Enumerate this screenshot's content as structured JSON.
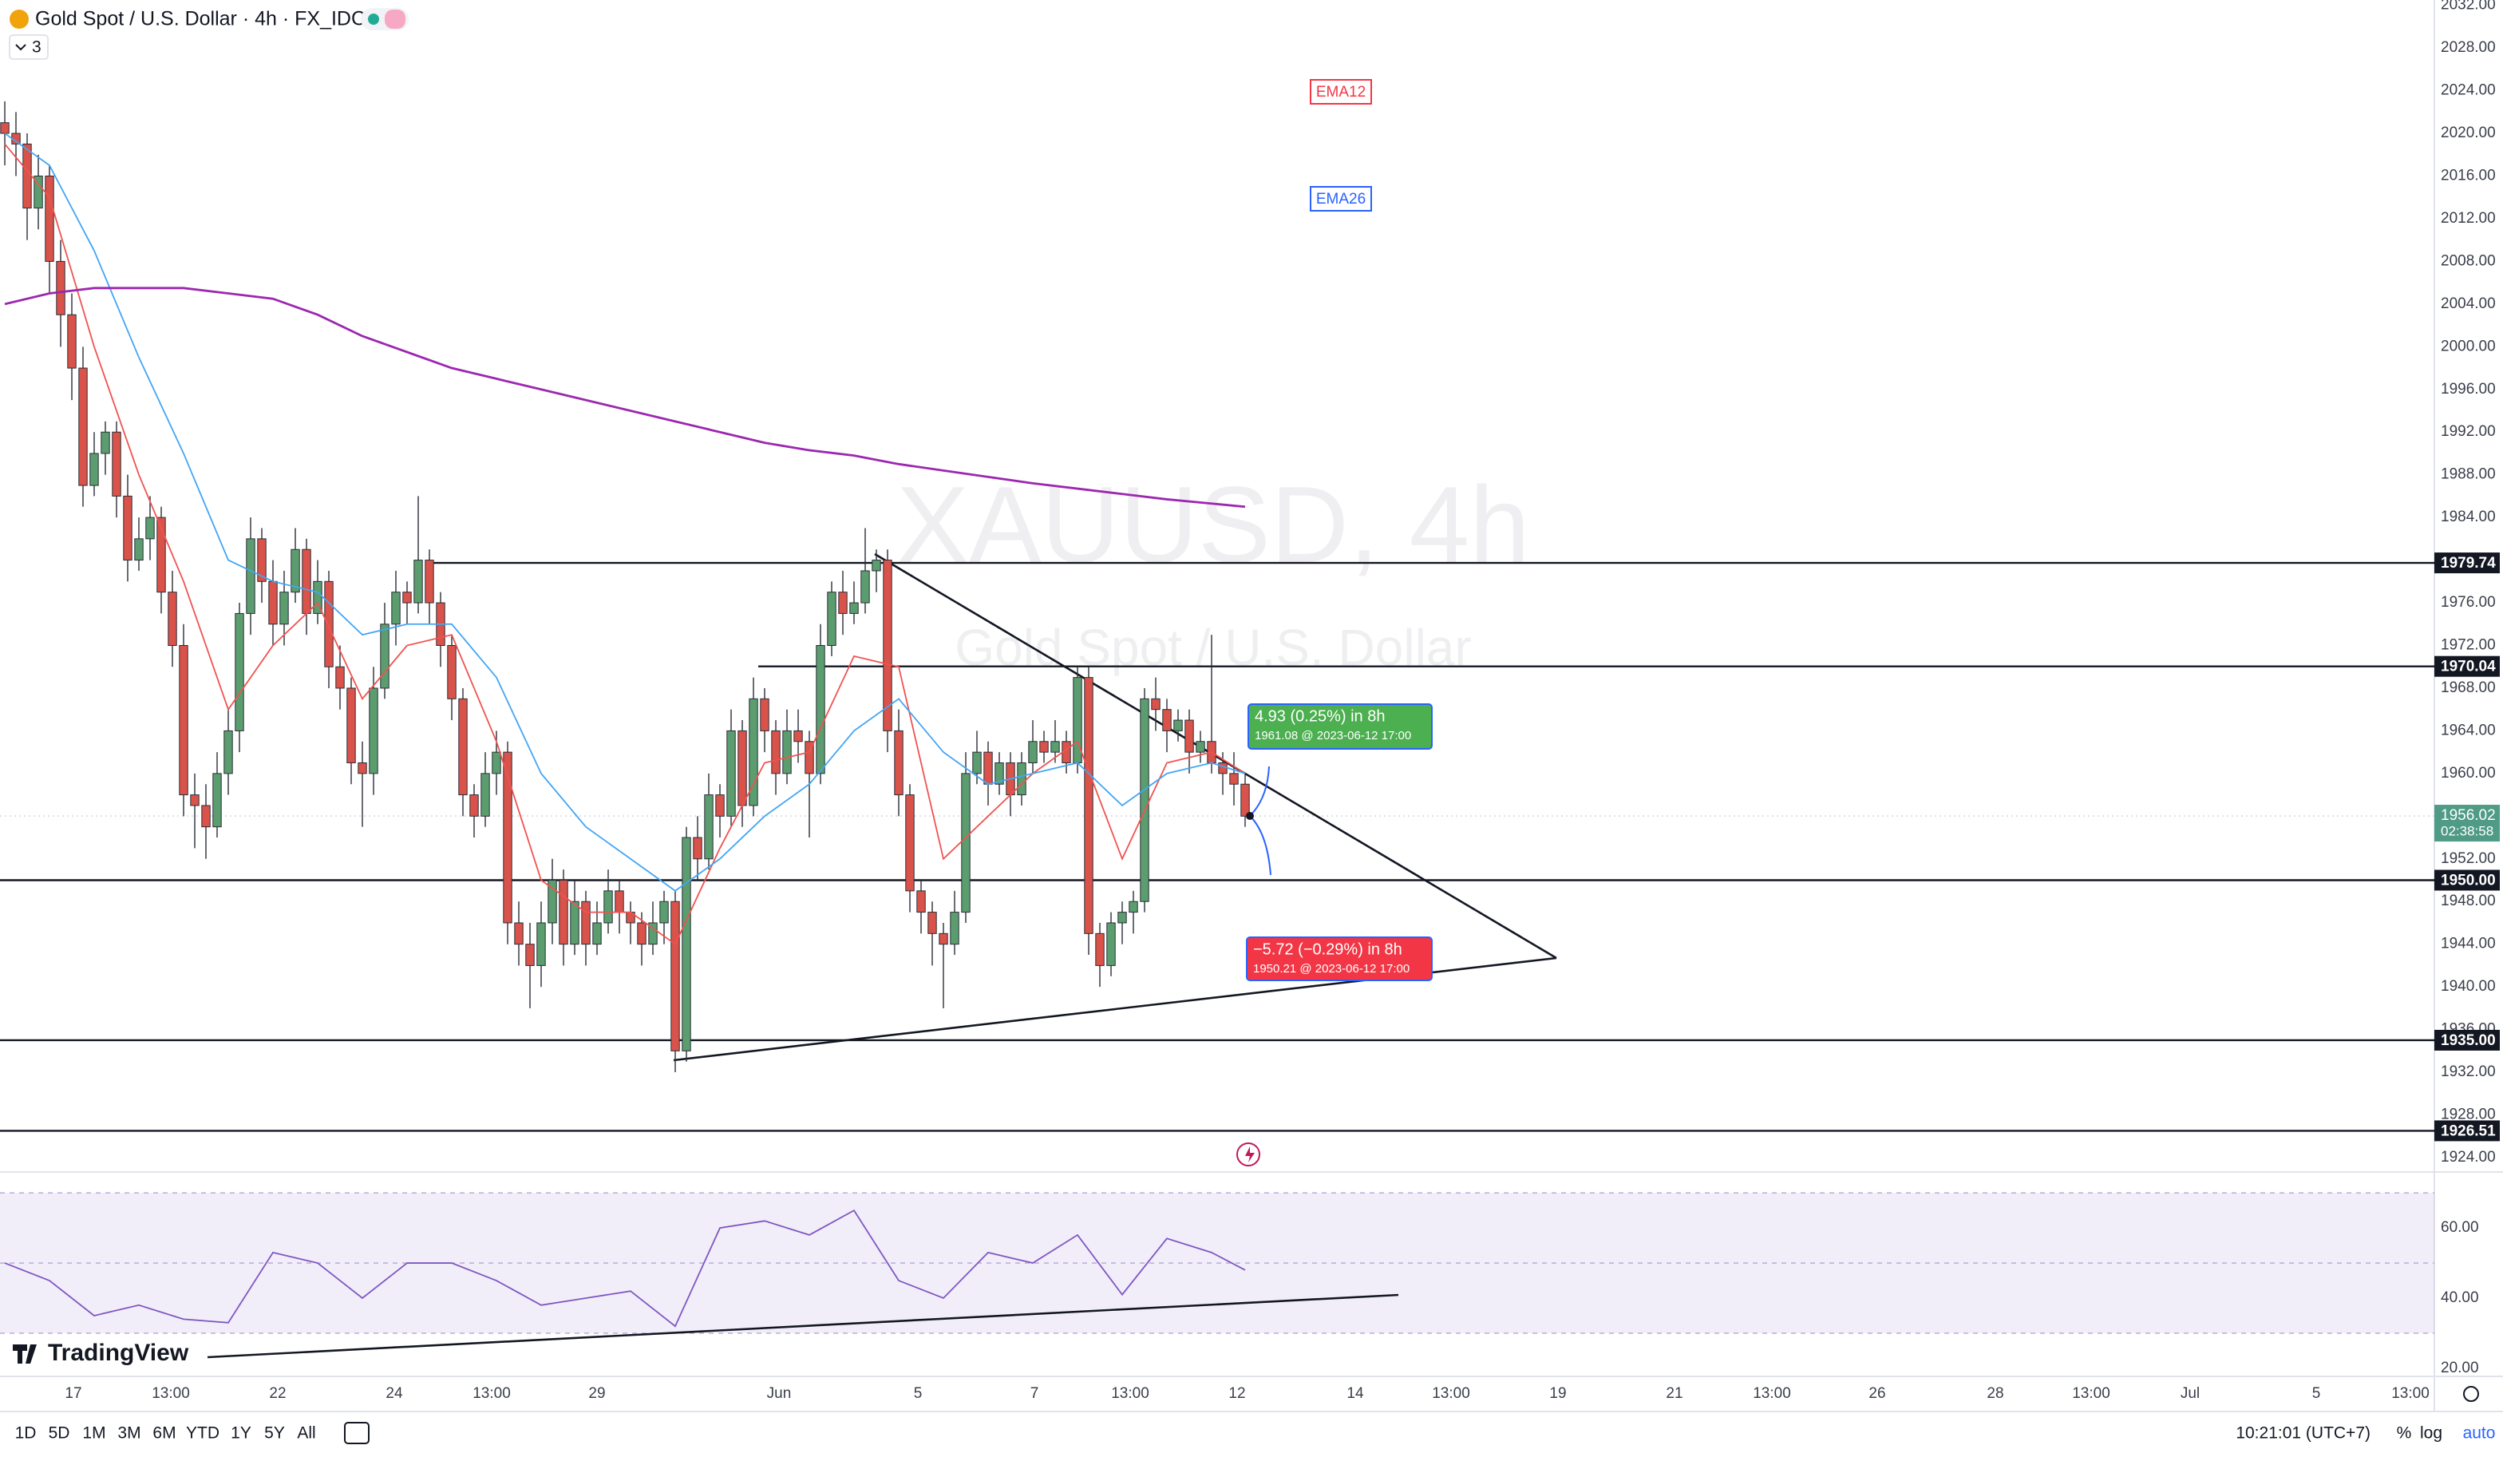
{
  "header": {
    "symbol_title": "Gold Spot / U.S. Dollar · 4h · FX_IDC",
    "indicator_count": "3"
  },
  "watermark": {
    "symbol": "XAUUSD, 4h",
    "description": "Gold Spot / U.S. Dollar"
  },
  "chart": {
    "type": "candlestick",
    "up_color": "#5b9d6e",
    "down_color": "#d9534a",
    "candles": [
      [
        2021,
        2023,
        2017,
        2020
      ],
      [
        2020,
        2022,
        2016,
        2019
      ],
      [
        2019,
        2020,
        2010,
        2013
      ],
      [
        2013,
        2018,
        2011,
        2016
      ],
      [
        2016,
        2017,
        2005,
        2008
      ],
      [
        2008,
        2010,
        2000,
        2003
      ],
      [
        2003,
        2005,
        1995,
        1998
      ],
      [
        1998,
        2000,
        1985,
        1987
      ],
      [
        1987,
        1992,
        1986,
        1990
      ],
      [
        1990,
        1993,
        1988,
        1992
      ],
      [
        1992,
        1993,
        1984,
        1986
      ],
      [
        1986,
        1988,
        1978,
        1980
      ],
      [
        1980,
        1984,
        1979,
        1982
      ],
      [
        1982,
        1986,
        1980,
        1984
      ],
      [
        1984,
        1985,
        1975,
        1977
      ],
      [
        1977,
        1979,
        1970,
        1972
      ],
      [
        1972,
        1974,
        1956,
        1958
      ],
      [
        1958,
        1960,
        1953,
        1957
      ],
      [
        1957,
        1959,
        1952,
        1955
      ],
      [
        1955,
        1962,
        1954,
        1960
      ],
      [
        1960,
        1966,
        1958,
        1964
      ],
      [
        1964,
        1976,
        1962,
        1975
      ],
      [
        1975,
        1984,
        1973,
        1982
      ],
      [
        1982,
        1983,
        1976,
        1978
      ],
      [
        1978,
        1980,
        1972,
        1974
      ],
      [
        1974,
        1979,
        1972,
        1977
      ],
      [
        1977,
        1983,
        1976,
        1981
      ],
      [
        1981,
        1982,
        1973,
        1975
      ],
      [
        1975,
        1980,
        1974,
        1978
      ],
      [
        1978,
        1979,
        1968,
        1970
      ],
      [
        1970,
        1972,
        1966,
        1968
      ],
      [
        1968,
        1969,
        1959,
        1961
      ],
      [
        1961,
        1963,
        1955,
        1960
      ],
      [
        1960,
        1970,
        1958,
        1968
      ],
      [
        1968,
        1976,
        1967,
        1974
      ],
      [
        1974,
        1979,
        1972,
        1977
      ],
      [
        1977,
        1978,
        1974,
        1976
      ],
      [
        1976,
        1986,
        1975,
        1980
      ],
      [
        1980,
        1981,
        1974,
        1976
      ],
      [
        1976,
        1977,
        1970,
        1972
      ],
      [
        1972,
        1973,
        1965,
        1967
      ],
      [
        1967,
        1968,
        1956,
        1958
      ],
      [
        1958,
        1959,
        1954,
        1956
      ],
      [
        1956,
        1962,
        1955,
        1960
      ],
      [
        1960,
        1964,
        1958,
        1962
      ],
      [
        1962,
        1963,
        1944,
        1946
      ],
      [
        1946,
        1948,
        1942,
        1944
      ],
      [
        1944,
        1946,
        1938,
        1942
      ],
      [
        1942,
        1948,
        1940,
        1946
      ],
      [
        1946,
        1952,
        1944,
        1950
      ],
      [
        1950,
        1951,
        1942,
        1944
      ],
      [
        1944,
        1950,
        1943,
        1948
      ],
      [
        1948,
        1949,
        1942,
        1944
      ],
      [
        1944,
        1948,
        1943,
        1946
      ],
      [
        1946,
        1951,
        1945,
        1949
      ],
      [
        1949,
        1950,
        1945,
        1947
      ],
      [
        1947,
        1948,
        1944,
        1946
      ],
      [
        1946,
        1947,
        1942,
        1944
      ],
      [
        1944,
        1948,
        1943,
        1946
      ],
      [
        1946,
        1949,
        1944,
        1948
      ],
      [
        1948,
        1949,
        1932,
        1934
      ],
      [
        1934,
        1955,
        1933,
        1954
      ],
      [
        1954,
        1956,
        1950,
        1952
      ],
      [
        1952,
        1960,
        1951,
        1958
      ],
      [
        1958,
        1959,
        1954,
        1956
      ],
      [
        1956,
        1966,
        1955,
        1964
      ],
      [
        1964,
        1965,
        1955,
        1957
      ],
      [
        1957,
        1969,
        1956,
        1967
      ],
      [
        1967,
        1968,
        1962,
        1964
      ],
      [
        1964,
        1965,
        1958,
        1960
      ],
      [
        1960,
        1966,
        1959,
        1964
      ],
      [
        1964,
        1966,
        1961,
        1963
      ],
      [
        1963,
        1964,
        1954,
        1960
      ],
      [
        1960,
        1974,
        1959,
        1972
      ],
      [
        1972,
        1978,
        1971,
        1977
      ],
      [
        1977,
        1979,
        1973,
        1975
      ],
      [
        1975,
        1978,
        1974,
        1976
      ],
      [
        1976,
        1983,
        1975,
        1979
      ],
      [
        1979,
        1981,
        1977,
        1980
      ],
      [
        1980,
        1981,
        1962,
        1964
      ],
      [
        1964,
        1966,
        1956,
        1958
      ],
      [
        1958,
        1959,
        1947,
        1949
      ],
      [
        1949,
        1950,
        1945,
        1947
      ],
      [
        1947,
        1948,
        1942,
        1945
      ],
      [
        1945,
        1946,
        1938,
        1944
      ],
      [
        1944,
        1949,
        1943,
        1947
      ],
      [
        1947,
        1962,
        1946,
        1960
      ],
      [
        1960,
        1964,
        1959,
        1962
      ],
      [
        1962,
        1963,
        1957,
        1959
      ],
      [
        1959,
        1962,
        1958,
        1961
      ],
      [
        1961,
        1962,
        1956,
        1958
      ],
      [
        1958,
        1962,
        1957,
        1961
      ],
      [
        1961,
        1965,
        1960,
        1963
      ],
      [
        1963,
        1964,
        1961,
        1962
      ],
      [
        1962,
        1965,
        1961,
        1963
      ],
      [
        1963,
        1964,
        1960,
        1961
      ],
      [
        1961,
        1970,
        1960,
        1969
      ],
      [
        1969,
        1970,
        1943,
        1945
      ],
      [
        1945,
        1946,
        1940,
        1942
      ],
      [
        1942,
        1947,
        1941,
        1946
      ],
      [
        1946,
        1948,
        1944,
        1947
      ],
      [
        1947,
        1949,
        1945,
        1948
      ],
      [
        1948,
        1968,
        1947,
        1967
      ],
      [
        1967,
        1969,
        1964,
        1966
      ],
      [
        1966,
        1967,
        1962,
        1964
      ],
      [
        1964,
        1966,
        1963,
        1965
      ],
      [
        1965,
        1966,
        1960,
        1962
      ],
      [
        1962,
        1964,
        1961,
        1963
      ],
      [
        1963,
        1973,
        1960,
        1961
      ],
      [
        1961,
        1962,
        1958,
        1960
      ],
      [
        1960,
        1962,
        1957,
        1959
      ],
      [
        1959,
        1960,
        1955,
        1956
      ]
    ],
    "lines": [
      {
        "name": "EMA12",
        "color": "#ef5350",
        "x": [
          0,
          4,
          8,
          12,
          16,
          20,
          24,
          28,
          32,
          36,
          40,
          44,
          48,
          52,
          56,
          60,
          64,
          68,
          72,
          76,
          80,
          84,
          88,
          92,
          96,
          100,
          104,
          108,
          111
        ],
        "values": [
          2019,
          2014,
          2000,
          1988,
          1978,
          1966,
          1972,
          1976,
          1967,
          1972,
          1973,
          1963,
          1950,
          1947,
          1947,
          1944,
          1953,
          1961,
          1962,
          1971,
          1970,
          1952,
          1956,
          1960,
          1963,
          1952,
          1961,
          1962,
          1960
        ]
      },
      {
        "name": "EMA26",
        "color": "#42a5f5",
        "x": [
          0,
          4,
          8,
          12,
          16,
          20,
          24,
          28,
          32,
          36,
          40,
          44,
          48,
          52,
          56,
          60,
          64,
          68,
          72,
          76,
          80,
          84,
          88,
          92,
          96,
          100,
          104,
          108,
          111
        ],
        "values": [
          2020,
          2017,
          2009,
          1999,
          1990,
          1980,
          1978,
          1977,
          1973,
          1974,
          1974,
          1969,
          1960,
          1955,
          1952,
          1949,
          1952,
          1956,
          1959,
          1964,
          1967,
          1962,
          1959,
          1960,
          1961,
          1957,
          1960,
          1961,
          1960
        ]
      },
      {
        "color": "#9c27b0",
        "x": [
          0,
          4,
          8,
          12,
          16,
          20,
          24,
          28,
          32,
          36,
          40,
          44,
          48,
          52,
          56,
          60,
          64,
          68,
          72,
          76,
          80,
          84,
          88,
          92,
          96,
          100,
          104,
          108,
          111
        ],
        "values": [
          2004,
          2005,
          2005.5,
          2005.5,
          2005.5,
          2005,
          2004.5,
          2003,
          2001,
          1999.5,
          1998,
          1997,
          1996,
          1995,
          1994,
          1993,
          1992,
          1991,
          1990.3,
          1989.8,
          1989,
          1988.4,
          1987.8,
          1987.2,
          1986.7,
          1986.2,
          1985.7,
          1985.3,
          1985
        ]
      }
    ],
    "ylim": [
      1922.8,
      2032.5
    ],
    "yticks": [
      {
        "value": 2032,
        "label": "2032.00"
      },
      {
        "value": 2028,
        "label": "2028.00"
      },
      {
        "value": 2024,
        "label": "2024.00"
      },
      {
        "value": 2020,
        "label": "2020.00"
      },
      {
        "value": 2016,
        "label": "2016.00"
      },
      {
        "value": 2012,
        "label": "2012.00"
      },
      {
        "value": 2008,
        "label": "2008.00"
      },
      {
        "value": 2004,
        "label": "2004.00"
      },
      {
        "value": 2000,
        "label": "2000.00"
      },
      {
        "value": 1996,
        "label": "1996.00"
      },
      {
        "value": 1992,
        "label": "1992.00"
      },
      {
        "value": 1988,
        "label": "1988.00"
      },
      {
        "value": 1984,
        "label": "1984.00"
      },
      {
        "value": 1980,
        "label": "1980.00"
      },
      {
        "value": 1976,
        "label": "1976.00"
      },
      {
        "value": 1972,
        "label": "1972.00"
      },
      {
        "value": 1968,
        "label": "1968.00"
      },
      {
        "value": 1964,
        "label": "1964.00"
      },
      {
        "value": 1960,
        "label": "1960.00"
      },
      {
        "value": 1956,
        "label": "1956.00"
      },
      {
        "value": 1952,
        "label": "1952.00"
      },
      {
        "value": 1948,
        "label": "1948.00"
      },
      {
        "value": 1944,
        "label": "1944.00"
      },
      {
        "value": 1940,
        "label": "1940.00"
      },
      {
        "value": 1936,
        "label": "1936.00"
      },
      {
        "value": 1932,
        "label": "1932.00"
      },
      {
        "value": 1928,
        "label": "1928.00"
      },
      {
        "value": 1924,
        "label": "1924.00"
      }
    ],
    "levels": [
      {
        "value": 1979.74,
        "label": "1979.74"
      },
      {
        "value": 1970.04,
        "label": "1970.04"
      },
      {
        "value": 1950,
        "label": "1950.00"
      },
      {
        "value": 1935,
        "label": "1935.00"
      },
      {
        "value": 1926.51,
        "label": "1926.51"
      }
    ],
    "last_price": {
      "value": 1956.02,
      "label": "1956.02"
    },
    "countdown": "02:38:58",
    "xticks": [
      "17",
      "13:00",
      "22",
      "24",
      "13:00",
      "29",
      "Jun",
      "5",
      "7",
      "13:00",
      "12",
      "14",
      "13:00",
      "19",
      "21",
      "13:00",
      "26",
      "28",
      "13:00",
      "Jul",
      "5",
      "13:00"
    ]
  },
  "rsi": {
    "color": "#7e57c2",
    "x": [
      0,
      4,
      8,
      12,
      16,
      20,
      24,
      28,
      32,
      36,
      40,
      44,
      48,
      52,
      56,
      60,
      64,
      68,
      72,
      76,
      80,
      84,
      88,
      92,
      96,
      100,
      104,
      108,
      111
    ],
    "values": [
      50,
      45,
      35,
      38,
      34,
      33,
      53,
      50,
      40,
      50,
      50,
      45,
      38,
      40,
      42,
      32,
      60,
      62,
      58,
      65,
      45,
      40,
      53,
      50,
      58,
      41,
      57,
      53,
      48
    ],
    "ylim": [
      17.7,
      75.5
    ],
    "upper_band": 70,
    "middle_band": 50,
    "lower_band": 30,
    "yticks": [
      {
        "value": 60,
        "label": "60.00"
      },
      {
        "value": 40,
        "label": "40.00"
      },
      {
        "value": 20,
        "label": "20.00"
      }
    ]
  },
  "annotations": {
    "ema12": "EMA12",
    "ema26": "EMA26",
    "up_projection": {
      "title": "4.93 (0.25%) in 8h",
      "detail": "1961.08 @ 2023-06-12  17:00"
    },
    "down_projection": {
      "title": "−5.72 (−0.29%) in 8h",
      "detail": "1950.21 @ 2023-06-12  17:00"
    }
  },
  "branding": "TradingView",
  "toolbar": {
    "ranges": [
      "1D",
      "5D",
      "1M",
      "3M",
      "6M",
      "YTD",
      "1Y",
      "5Y",
      "All"
    ],
    "clock": "10:21:01 (UTC+7)",
    "percent": "%",
    "log": "log",
    "auto": "auto"
  }
}
